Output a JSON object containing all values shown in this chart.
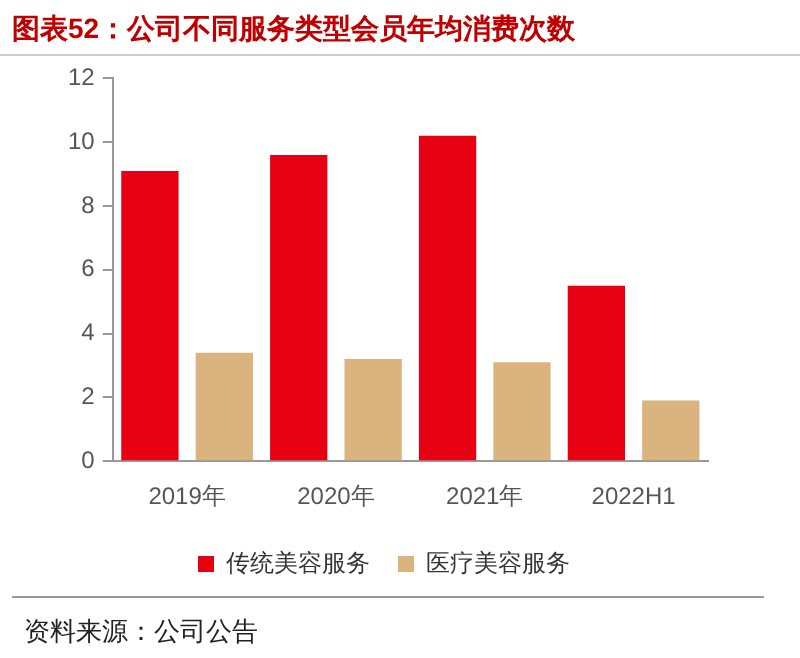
{
  "chart_data": {
    "type": "bar",
    "title": "图表52：公司不同服务类型会员年均消费次数",
    "categories": [
      "2019年",
      "2020年",
      "2021年",
      "2022H1"
    ],
    "series": [
      {
        "name": "传统美容服务",
        "color": "#e60012",
        "values": [
          9.1,
          9.6,
          10.2,
          5.5
        ]
      },
      {
        "name": "医疗美容服务",
        "color": "#dbb37e",
        "values": [
          3.4,
          3.2,
          3.1,
          1.9
        ]
      }
    ],
    "ylim": [
      0,
      12
    ],
    "yticks": [
      0,
      2,
      4,
      6,
      8,
      10,
      12
    ],
    "grid": false,
    "legend": "bottom",
    "annotations": [
      "资料来源：公司公告"
    ]
  }
}
